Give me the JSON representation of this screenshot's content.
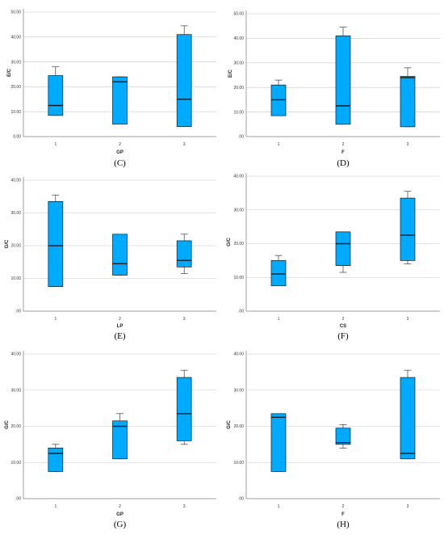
{
  "style": {
    "box_fill": "#00aaff",
    "box_stroke": "#1a1a1a",
    "grid_color": "#c8c8c8",
    "axis_color": "#888888"
  },
  "chart_data": [
    {
      "type": "boxplot",
      "caption": "(C)",
      "xlabel": "GP",
      "ylabel": "E/C",
      "ylim": [
        0,
        50
      ],
      "yticks": [
        "0.00",
        "10.00",
        "20.00",
        "30.00",
        "40.00",
        "50.00"
      ],
      "ytick_values": [
        0,
        10,
        20,
        30,
        40,
        50
      ],
      "categories": [
        "1",
        "2",
        "3"
      ],
      "boxes": [
        {
          "min": 8.5,
          "q1": 8.5,
          "median": 12.5,
          "q3": 24.5,
          "max": 28
        },
        {
          "min": 5,
          "q1": 5,
          "median": 22,
          "q3": 24,
          "max": 24
        },
        {
          "min": 4,
          "q1": 4,
          "median": 15,
          "q3": 41,
          "max": 44.5
        }
      ]
    },
    {
      "type": "boxplot",
      "caption": "(D)",
      "xlabel": "F",
      "ylabel": "E/C",
      "ylim": [
        0,
        50
      ],
      "yticks": [
        ".00",
        "10.00",
        "20.00",
        "30.00",
        "40.00",
        "50.00"
      ],
      "ytick_values": [
        0,
        10,
        20,
        30,
        40,
        50
      ],
      "categories": [
        "1",
        "2",
        "3"
      ],
      "boxes": [
        {
          "min": 8.5,
          "q1": 8.5,
          "median": 15,
          "q3": 21,
          "max": 23
        },
        {
          "min": 5,
          "q1": 5,
          "median": 12.5,
          "q3": 41,
          "max": 44.5
        },
        {
          "min": 4,
          "q1": 4,
          "median": 24,
          "q3": 24.5,
          "max": 28
        }
      ]
    },
    {
      "type": "boxplot",
      "caption": "(E)",
      "xlabel": "LP",
      "ylabel": "G/C",
      "ylim": [
        0,
        40
      ],
      "yticks": [
        ".00",
        "10.00",
        "20.00",
        "30.00",
        "40.00"
      ],
      "ytick_values": [
        0,
        10,
        20,
        30,
        40
      ],
      "categories": [
        "1",
        "2",
        "3"
      ],
      "boxes": [
        {
          "min": 7.5,
          "q1": 7.5,
          "median": 20,
          "q3": 33.5,
          "max": 35.5
        },
        {
          "min": 11,
          "q1": 11,
          "median": 14.5,
          "q3": 23.5,
          "max": 23.5
        },
        {
          "min": 11.5,
          "q1": 13.5,
          "median": 15.5,
          "q3": 21.5,
          "max": 23.5
        }
      ]
    },
    {
      "type": "boxplot",
      "caption": "(F)",
      "xlabel": "CS",
      "ylabel": "G/C",
      "ylim": [
        0,
        40
      ],
      "yticks": [
        ".00",
        "10.00",
        "20.00",
        "30.00",
        "40.00"
      ],
      "ytick_values": [
        0,
        10,
        20,
        30,
        40
      ],
      "categories": [
        "1",
        "2",
        "3"
      ],
      "boxes": [
        {
          "min": 7.5,
          "q1": 7.5,
          "median": 11,
          "q3": 15,
          "max": 16.5
        },
        {
          "min": 11.5,
          "q1": 13.5,
          "median": 20,
          "q3": 23.5,
          "max": 23.5
        },
        {
          "min": 14,
          "q1": 15,
          "median": 22.5,
          "q3": 33.5,
          "max": 35.5
        }
      ]
    },
    {
      "type": "boxplot",
      "caption": "(G)",
      "xlabel": "GP",
      "ylabel": "G/C",
      "ylim": [
        0,
        40
      ],
      "yticks": [
        ".00",
        "10.00",
        "20.00",
        "30.00",
        "40.00"
      ],
      "ytick_values": [
        0,
        10,
        20,
        30,
        40
      ],
      "categories": [
        "1",
        "2",
        "3"
      ],
      "boxes": [
        {
          "min": 7.5,
          "q1": 7.5,
          "median": 12.5,
          "q3": 14,
          "max": 15
        },
        {
          "min": 11,
          "q1": 11,
          "median": 20,
          "q3": 21.5,
          "max": 23.5
        },
        {
          "min": 15,
          "q1": 16,
          "median": 23.5,
          "q3": 33.5,
          "max": 35.5
        }
      ]
    },
    {
      "type": "boxplot",
      "caption": "(H)",
      "xlabel": "F",
      "ylabel": "G/C",
      "ylim": [
        0,
        40
      ],
      "yticks": [
        ".00",
        "10.00",
        "20.00",
        "30.00",
        "40.00"
      ],
      "ytick_values": [
        0,
        10,
        20,
        30,
        40
      ],
      "categories": [
        "1",
        "2",
        "3"
      ],
      "boxes": [
        {
          "min": 7.5,
          "q1": 7.5,
          "median": 22.5,
          "q3": 23.5,
          "max": 23.5
        },
        {
          "min": 14,
          "q1": 15,
          "median": 15.5,
          "q3": 19.5,
          "max": 20.5
        },
        {
          "min": 11,
          "q1": 11,
          "median": 12.5,
          "q3": 33.5,
          "max": 35.5
        }
      ]
    }
  ]
}
